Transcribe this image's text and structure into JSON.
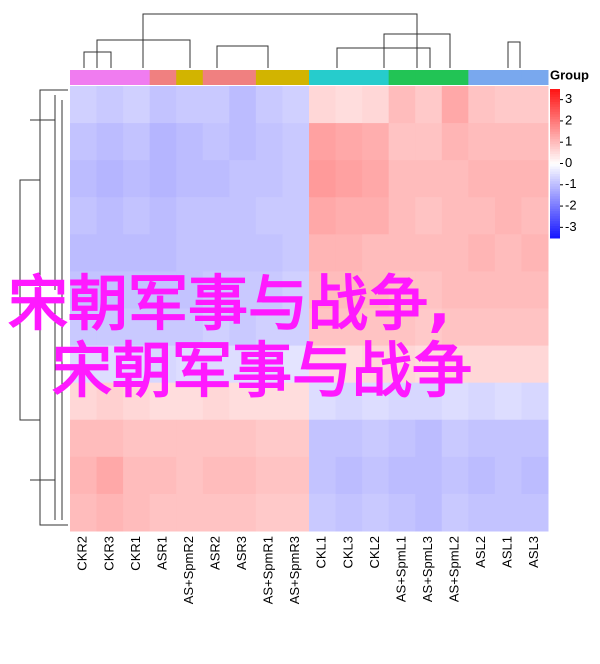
{
  "chart_data": {
    "type": "heatmap",
    "columns": [
      "CKR2",
      "CKR3",
      "CKR1",
      "ASR1",
      "AS+SpmR2",
      "ASR2",
      "ASR3",
      "AS+SpmR1",
      "AS+SpmR3",
      "CKL1",
      "CKL3",
      "CKL2",
      "AS+SpmL1",
      "AS+SpmL3",
      "AS+SpmL2",
      "ASL2",
      "ASL1",
      "ASL3"
    ],
    "group_colors": [
      "#f07cf0",
      "#f07cf0",
      "#f07cf0",
      "#f08080",
      "#d2b400",
      "#f08080",
      "#f08080",
      "#d2b400",
      "#d2b400",
      "#26cccc",
      "#26cccc",
      "#26cccc",
      "#22c455",
      "#22c455",
      "#22c455",
      "#79a8ee",
      "#79a8ee",
      "#79a8ee"
    ],
    "legend_title": "Group",
    "matrix": [
      [
        -0.7,
        -0.8,
        -0.7,
        -0.9,
        -0.8,
        -0.8,
        -1.0,
        -0.8,
        -0.7,
        0.6,
        0.5,
        0.6,
        1.0,
        0.8,
        1.3,
        0.9,
        0.8,
        0.8
      ],
      [
        -0.9,
        -1.0,
        -0.9,
        -1.1,
        -1.0,
        -0.9,
        -1.0,
        -0.9,
        -0.8,
        1.4,
        1.3,
        1.2,
        0.9,
        0.9,
        1.1,
        1.0,
        1.0,
        1.0
      ],
      [
        -1.0,
        -1.1,
        -1.0,
        -1.1,
        -1.0,
        -1.0,
        -0.9,
        -0.9,
        -0.8,
        1.5,
        1.4,
        1.3,
        1.0,
        1.0,
        1.0,
        1.1,
        1.1,
        1.1
      ],
      [
        -0.9,
        -1.0,
        -0.9,
        -1.0,
        -0.9,
        -0.9,
        -0.9,
        -0.8,
        -0.8,
        1.3,
        1.2,
        1.2,
        1.0,
        0.9,
        1.0,
        1.0,
        1.1,
        1.0
      ],
      [
        -1.0,
        -1.0,
        -1.0,
        -1.0,
        -0.9,
        -0.9,
        -0.9,
        -0.9,
        -0.8,
        1.1,
        1.1,
        1.0,
        1.0,
        1.0,
        1.0,
        1.1,
        1.0,
        1.1
      ],
      [
        -0.9,
        -0.9,
        -0.9,
        -0.9,
        -0.9,
        -0.8,
        -0.8,
        -0.8,
        -0.7,
        1.0,
        1.0,
        1.0,
        0.9,
        0.9,
        1.0,
        1.0,
        1.0,
        1.0
      ],
      [
        -0.8,
        -0.8,
        -0.8,
        -0.8,
        -0.8,
        -0.7,
        -0.8,
        -0.7,
        -0.7,
        0.9,
        0.9,
        0.9,
        0.9,
        0.8,
        0.9,
        0.9,
        0.9,
        0.9
      ],
      [
        -0.5,
        -0.5,
        -0.5,
        -0.6,
        -0.5,
        -0.5,
        -0.5,
        -0.5,
        -0.4,
        0.5,
        0.5,
        0.6,
        0.6,
        0.5,
        0.6,
        0.6,
        0.6,
        0.6
      ],
      [
        0.6,
        0.7,
        0.6,
        0.5,
        0.5,
        0.6,
        0.5,
        0.5,
        0.5,
        -0.5,
        -0.6,
        -0.5,
        -0.6,
        -0.6,
        -0.5,
        -0.6,
        -0.5,
        -0.6
      ],
      [
        1.0,
        1.0,
        0.9,
        0.9,
        0.9,
        0.9,
        0.9,
        0.8,
        0.8,
        -0.9,
        -0.9,
        -0.8,
        -0.9,
        -1.0,
        -0.8,
        -0.9,
        -0.9,
        -0.9
      ],
      [
        1.1,
        1.3,
        1.0,
        1.0,
        0.9,
        1.0,
        1.0,
        0.9,
        0.9,
        -0.9,
        -1.0,
        -0.9,
        -1.0,
        -1.0,
        -0.9,
        -1.0,
        -0.9,
        -1.0
      ],
      [
        1.0,
        1.1,
        1.0,
        0.9,
        0.9,
        0.9,
        0.9,
        0.8,
        0.8,
        -0.8,
        -0.9,
        -0.8,
        -0.9,
        -1.0,
        -0.8,
        -0.9,
        -0.9,
        -0.9
      ]
    ],
    "colorbar": {
      "lim": [
        -3.5,
        3.5
      ],
      "ticks": [
        3,
        2,
        1,
        0,
        -1,
        -2,
        -3
      ]
    },
    "overlay_text": [
      "宋朝军事与战争,",
      "宋朝军事与战争"
    ]
  }
}
